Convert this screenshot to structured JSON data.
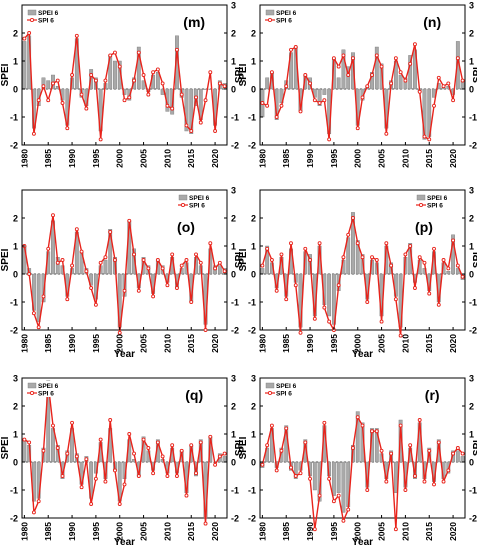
{
  "figure": {
    "legend_labels": {
      "bar": "SPEI 6",
      "line": "SPI 6"
    },
    "colors": {
      "bar": "#a9a9a9",
      "bar_stroke": "#7a7a7a",
      "line": "#e8231b",
      "axis": "#000000"
    }
  },
  "chart_data": [
    {
      "id": "m",
      "panel_label": "(m)",
      "type": "bar+line",
      "xlabel": "",
      "ylabel": "SPEI",
      "y2label": "SPI",
      "xlim": [
        1979.5,
        2022.5
      ],
      "ylim": [
        -2,
        3
      ],
      "xticks": [
        1980,
        1985,
        1990,
        1995,
        2000,
        2005,
        2010,
        2015,
        2020
      ],
      "yticks_left": [
        "-2",
        "-1",
        "0",
        "1",
        "2"
      ],
      "yticks_right": [
        "-2",
        "-1",
        "0",
        "1",
        "2",
        "3"
      ],
      "legend": "top-left",
      "x": [
        1980,
        1981,
        1982,
        1983,
        1984,
        1985,
        1986,
        1987,
        1988,
        1989,
        1990,
        1991,
        1992,
        1993,
        1994,
        1995,
        1996,
        1997,
        1998,
        1999,
        2000,
        2001,
        2002,
        2003,
        2004,
        2005,
        2006,
        2007,
        2008,
        2009,
        2010,
        2011,
        2012,
        2013,
        2014,
        2015,
        2016,
        2017,
        2018,
        2019,
        2020,
        2021,
        2022
      ],
      "series": [
        {
          "name": "SPEI 6",
          "kind": "bar",
          "values": [
            1.7,
            1.9,
            -1.4,
            -0.6,
            0.4,
            0.3,
            0.5,
            0.1,
            -0.4,
            -1.3,
            0.4,
            1.8,
            -0.3,
            -0.6,
            0.7,
            0.4,
            -1.5,
            0.2,
            1.2,
            1.0,
            1.0,
            -0.2,
            -0.4,
            0.4,
            1.5,
            0.3,
            -0.1,
            0.5,
            0.6,
            -0.2,
            -0.8,
            -0.9,
            1.9,
            -0.3,
            -1.5,
            -1.6,
            -0.6,
            -1.1,
            0.0,
            0.0,
            -1.3,
            0.3,
            0.2
          ]
        },
        {
          "name": "SPI 6",
          "kind": "line",
          "values": [
            1.8,
            2.0,
            -1.6,
            -0.4,
            0.1,
            -0.4,
            0.2,
            0.3,
            -0.5,
            -1.4,
            0.5,
            1.9,
            -0.2,
            -0.7,
            0.5,
            0.3,
            -1.8,
            0.3,
            1.2,
            1.3,
            0.8,
            -0.4,
            -0.3,
            0.3,
            1.3,
            0.5,
            -0.2,
            0.6,
            0.7,
            0.2,
            -0.6,
            -0.7,
            1.4,
            -0.2,
            -1.3,
            -1.5,
            -0.3,
            -1.2,
            -0.4,
            0.6,
            -1.5,
            0.2,
            0.1
          ]
        }
      ]
    },
    {
      "id": "n",
      "panel_label": "(n)",
      "type": "bar+line",
      "xlabel": "",
      "ylabel": "SPEI",
      "y2label": "SPI",
      "xlim": [
        1979.5,
        2022.5
      ],
      "ylim": [
        -2,
        3
      ],
      "xticks": [
        1980,
        1985,
        1990,
        1995,
        2000,
        2005,
        2010,
        2015,
        2020
      ],
      "yticks_left": [
        "-2",
        "-1",
        "0",
        "1",
        "2"
      ],
      "yticks_right": [
        "-2",
        "-1",
        "0",
        "1",
        "2",
        "3"
      ],
      "legend": "top-left",
      "x": [
        1980,
        1981,
        1982,
        1983,
        1984,
        1985,
        1986,
        1987,
        1988,
        1989,
        1990,
        1991,
        1992,
        1993,
        1994,
        1995,
        1996,
        1997,
        1998,
        1999,
        2000,
        2001,
        2002,
        2003,
        2004,
        2005,
        2006,
        2007,
        2008,
        2009,
        2010,
        2011,
        2012,
        2013,
        2014,
        2015,
        2016,
        2017,
        2018,
        2019,
        2020,
        2021,
        2022
      ],
      "series": [
        {
          "name": "SPEI 6",
          "kind": "bar",
          "values": [
            -1.0,
            0.4,
            0.6,
            -1.1,
            -0.5,
            0.3,
            1.3,
            1.5,
            -0.8,
            0.5,
            0.4,
            -0.3,
            -0.6,
            -0.2,
            -1.6,
            1.1,
            0.4,
            1.4,
            0.8,
            1.3,
            -1.3,
            -0.4,
            0.1,
            0.6,
            1.5,
            0.9,
            -1.4,
            0.3,
            1.0,
            0.5,
            0.4,
            1.2,
            1.4,
            -0.1,
            -1.8,
            -1.7,
            -0.3,
            0.2,
            0.1,
            0.1,
            -0.2,
            1.7,
            0.3
          ]
        },
        {
          "name": "SPI 6",
          "kind": "line",
          "values": [
            -0.5,
            -0.6,
            0.6,
            -1.0,
            -0.6,
            0.1,
            1.4,
            1.5,
            -0.8,
            0.5,
            0.2,
            -0.4,
            -0.5,
            -0.4,
            -1.8,
            1.1,
            0.8,
            1.2,
            0.5,
            1.1,
            -1.4,
            -0.3,
            0.1,
            0.5,
            1.2,
            0.8,
            -1.6,
            0.2,
            1.1,
            0.6,
            0.3,
            0.9,
            1.6,
            -0.1,
            -1.7,
            -1.8,
            -0.6,
            0.4,
            0.1,
            0.2,
            -0.4,
            1.1,
            0.3
          ]
        }
      ]
    },
    {
      "id": "o",
      "panel_label": "(o)",
      "type": "bar+line",
      "xlabel": "Year",
      "ylabel": "SPEI",
      "y2label": "SPI",
      "xlim": [
        1979.5,
        2022.5
      ],
      "ylim": [
        -2,
        3
      ],
      "xticks": [
        1980,
        1985,
        1990,
        1995,
        2000,
        2005,
        2010,
        2015,
        2020
      ],
      "yticks_left": [
        "-2",
        "-1",
        "0",
        "1",
        "2"
      ],
      "yticks_right": [
        "-2",
        "-1",
        "0",
        "1",
        "2",
        "3"
      ],
      "legend": "top-right",
      "x": [
        1980,
        1981,
        1982,
        1983,
        1984,
        1985,
        1986,
        1987,
        1988,
        1989,
        1990,
        1991,
        1992,
        1993,
        1994,
        1995,
        1996,
        1997,
        1998,
        1999,
        2000,
        2001,
        2002,
        2003,
        2004,
        2005,
        2006,
        2007,
        2008,
        2009,
        2010,
        2011,
        2012,
        2013,
        2014,
        2015,
        2016,
        2017,
        2018,
        2019,
        2020,
        2021,
        2022
      ],
      "series": [
        {
          "name": "SPEI 6",
          "kind": "bar",
          "values": [
            1.0,
            0.2,
            -1.3,
            -1.7,
            -1.0,
            0.8,
            1.9,
            0.6,
            0.3,
            -0.8,
            0.2,
            1.5,
            0.8,
            0.2,
            -0.4,
            -0.9,
            0.3,
            0.5,
            1.6,
            0.6,
            -1.9,
            -0.8,
            1.9,
            0.9,
            -0.5,
            0.6,
            0.3,
            -0.7,
            0.5,
            0.3,
            -0.3,
            0.6,
            -0.5,
            0.2,
            0.4,
            -1.0,
            0.6,
            0.3,
            -1.8,
            0.9,
            0.3,
            0.3,
            0.2
          ]
        },
        {
          "name": "SPI 6",
          "kind": "line",
          "values": [
            1.0,
            0.0,
            -1.4,
            -1.9,
            -0.8,
            0.9,
            2.1,
            0.4,
            0.5,
            -0.9,
            0.3,
            1.6,
            0.8,
            0.1,
            -0.5,
            -1.1,
            0.4,
            0.6,
            1.5,
            0.5,
            -2.1,
            -0.6,
            1.9,
            0.7,
            -0.6,
            0.5,
            0.2,
            -0.8,
            0.5,
            0.2,
            -0.4,
            0.7,
            -0.5,
            0.3,
            0.5,
            -1.0,
            0.7,
            0.4,
            -2.0,
            1.1,
            0.2,
            0.4,
            0.1
          ]
        }
      ]
    },
    {
      "id": "p",
      "panel_label": "(p)",
      "type": "bar+line",
      "xlabel": "Year",
      "ylabel": "SPEI",
      "y2label": "SPI",
      "xlim": [
        1979.5,
        2022.5
      ],
      "ylim": [
        -2,
        3
      ],
      "xticks": [
        1980,
        1985,
        1990,
        1995,
        2000,
        2005,
        2010,
        2015,
        2020
      ],
      "yticks_left": [
        "-2",
        "-1",
        "0",
        "1",
        "2"
      ],
      "yticks_right": [
        "-2",
        "-1",
        "0",
        "1",
        "2",
        "3"
      ],
      "legend": "top-right",
      "x": [
        1980,
        1981,
        1982,
        1983,
        1984,
        1985,
        1986,
        1987,
        1988,
        1989,
        1990,
        1991,
        1992,
        1993,
        1994,
        1995,
        1996,
        1997,
        1998,
        1999,
        2000,
        2001,
        2002,
        2003,
        2004,
        2005,
        2006,
        2007,
        2008,
        2009,
        2010,
        2011,
        2012,
        2013,
        2014,
        2015,
        2016,
        2017,
        2018,
        2019,
        2020,
        2021,
        2022
      ],
      "series": [
        {
          "name": "SPEI 6",
          "kind": "bar",
          "values": [
            0.2,
            1.0,
            0.4,
            -0.5,
            0.6,
            -0.8,
            0.9,
            -0.3,
            -1.9,
            0.8,
            0.7,
            -1.5,
            1.0,
            -1.1,
            -1.5,
            -1.8,
            -0.6,
            0.5,
            1.3,
            2.2,
            1.2,
            0.7,
            -0.9,
            0.5,
            0.4,
            -1.5,
            1.0,
            0.4,
            -0.8,
            -1.9,
            0.6,
            1.1,
            -0.3,
            0.5,
            0.2,
            -0.6,
            0.8,
            -1.0,
            0.4,
            0.1,
            1.4,
            0.2,
            -0.2
          ]
        },
        {
          "name": "SPI 6",
          "kind": "line",
          "values": [
            0.3,
            0.9,
            0.5,
            -0.6,
            0.7,
            -0.9,
            1.1,
            -0.4,
            -2.1,
            0.9,
            0.5,
            -1.6,
            1.1,
            -1.2,
            -1.7,
            -2.0,
            -0.4,
            0.6,
            1.4,
            2.0,
            1.1,
            0.6,
            -1.0,
            0.6,
            0.5,
            -1.7,
            1.1,
            0.3,
            -0.9,
            -2.2,
            0.7,
            1.0,
            -0.5,
            0.6,
            0.4,
            -0.7,
            0.9,
            -1.1,
            0.5,
            0.2,
            1.2,
            0.3,
            -0.1
          ]
        }
      ]
    },
    {
      "id": "q",
      "panel_label": "(q)",
      "type": "bar+line",
      "xlabel": "Year",
      "ylabel": "SPEI",
      "y2label": "SPI",
      "xlim": [
        1979.5,
        2022.5
      ],
      "ylim": [
        -2,
        3
      ],
      "xticks": [
        1980,
        1985,
        1990,
        1995,
        2000,
        2005,
        2010,
        2015,
        2020
      ],
      "yticks_left": [
        "-2",
        "-1",
        "0",
        "1",
        "2",
        "3"
      ],
      "yticks_right": [
        "-2",
        "-1",
        "0",
        "1",
        "2",
        "3"
      ],
      "legend": "top-left",
      "x": [
        1980,
        1981,
        1982,
        1983,
        1984,
        1985,
        1986,
        1987,
        1988,
        1989,
        1990,
        1991,
        1992,
        1993,
        1994,
        1995,
        1996,
        1997,
        1998,
        1999,
        2000,
        2001,
        2002,
        2003,
        2004,
        2005,
        2006,
        2007,
        2008,
        2009,
        2010,
        2011,
        2012,
        2013,
        2014,
        2015,
        2016,
        2017,
        2018,
        2019,
        2020,
        2021,
        2022
      ],
      "series": [
        {
          "name": "SPEI 6",
          "kind": "bar",
          "values": [
            0.8,
            0.6,
            -1.4,
            -1.3,
            0.5,
            2.9,
            1.2,
            0.6,
            -0.6,
            0.4,
            1.2,
            0.3,
            -0.8,
            0.2,
            -1.3,
            -0.4,
            0.7,
            -0.6,
            1.2,
            -0.3,
            -1.4,
            -0.6,
            0.8,
            0.1,
            -0.5,
            0.9,
            0.4,
            -0.3,
            0.8,
            0.1,
            -0.4,
            0.5,
            -0.4,
            0.4,
            -1.1,
            0.6,
            -0.5,
            0.8,
            -2.0,
            0.9,
            0.0,
            0.3,
            0.2
          ]
        },
        {
          "name": "SPI 6",
          "kind": "line",
          "values": [
            0.8,
            0.7,
            -1.8,
            -1.4,
            0.4,
            2.8,
            1.3,
            0.5,
            -0.5,
            0.3,
            1.4,
            0.2,
            -0.9,
            0.1,
            -1.5,
            -0.6,
            0.8,
            -0.7,
            1.5,
            -0.3,
            -1.5,
            -0.8,
            1.0,
            0.3,
            -0.5,
            0.8,
            0.5,
            -0.4,
            0.7,
            0.2,
            -0.5,
            0.6,
            -0.5,
            0.4,
            -1.2,
            0.6,
            -0.4,
            0.7,
            -2.2,
            0.9,
            -0.1,
            0.2,
            0.3
          ]
        }
      ]
    },
    {
      "id": "r",
      "panel_label": "(r)",
      "type": "bar+line",
      "xlabel": "Year",
      "ylabel": "SPEI",
      "y2label": "SPI",
      "xlim": [
        1979.5,
        2022.5
      ],
      "ylim": [
        -2,
        3
      ],
      "xticks": [
        1980,
        1985,
        1990,
        1995,
        2000,
        2005,
        2010,
        2015,
        2020
      ],
      "yticks_left": [
        "-2",
        "-1",
        "0",
        "1",
        "2",
        "3"
      ],
      "yticks_right": [
        "-2",
        "-1",
        "0",
        "1",
        "2",
        "3"
      ],
      "legend": "top-left",
      "x": [
        1980,
        1981,
        1982,
        1983,
        1984,
        1985,
        1986,
        1987,
        1988,
        1989,
        1990,
        1991,
        1992,
        1993,
        1994,
        1995,
        1996,
        1997,
        1998,
        1999,
        2000,
        2001,
        2002,
        2003,
        2004,
        2005,
        2006,
        2007,
        2008,
        2009,
        2010,
        2011,
        2012,
        2013,
        2014,
        2015,
        2016,
        2017,
        2018,
        2019,
        2020,
        2021,
        2022
      ],
      "series": [
        {
          "name": "SPEI 6",
          "kind": "bar",
          "values": [
            -0.2,
            0.5,
            1.2,
            -0.2,
            0.5,
            1.3,
            -0.3,
            -0.6,
            -0.3,
            0.8,
            -0.5,
            -1.0,
            -1.4,
            1.3,
            -0.5,
            -1.2,
            -1.1,
            -1.8,
            -1.6,
            0.6,
            1.8,
            1.4,
            -0.9,
            1.2,
            1.2,
            0.3,
            -0.6,
            0.4,
            -1.1,
            1.5,
            -0.9,
            0.5,
            -0.6,
            1.4,
            -0.6,
            0.5,
            -0.7,
            0.8,
            -0.6,
            -0.4,
            0.4,
            0.4,
            0.2
          ]
        },
        {
          "name": "SPI 6",
          "kind": "line",
          "values": [
            -0.1,
            0.6,
            1.3,
            -0.3,
            0.4,
            1.2,
            -0.2,
            -0.5,
            -0.4,
            0.7,
            -0.6,
            -2.4,
            -1.2,
            1.4,
            -0.6,
            -1.4,
            -1.2,
            -2.1,
            -1.7,
            0.5,
            1.6,
            1.3,
            -1.0,
            1.1,
            1.1,
            0.4,
            -0.7,
            0.3,
            -2.4,
            1.3,
            -1.0,
            0.6,
            -0.5,
            1.5,
            -0.7,
            0.4,
            -0.8,
            0.7,
            -0.7,
            -0.3,
            0.3,
            0.5,
            0.3
          ]
        }
      ]
    }
  ]
}
